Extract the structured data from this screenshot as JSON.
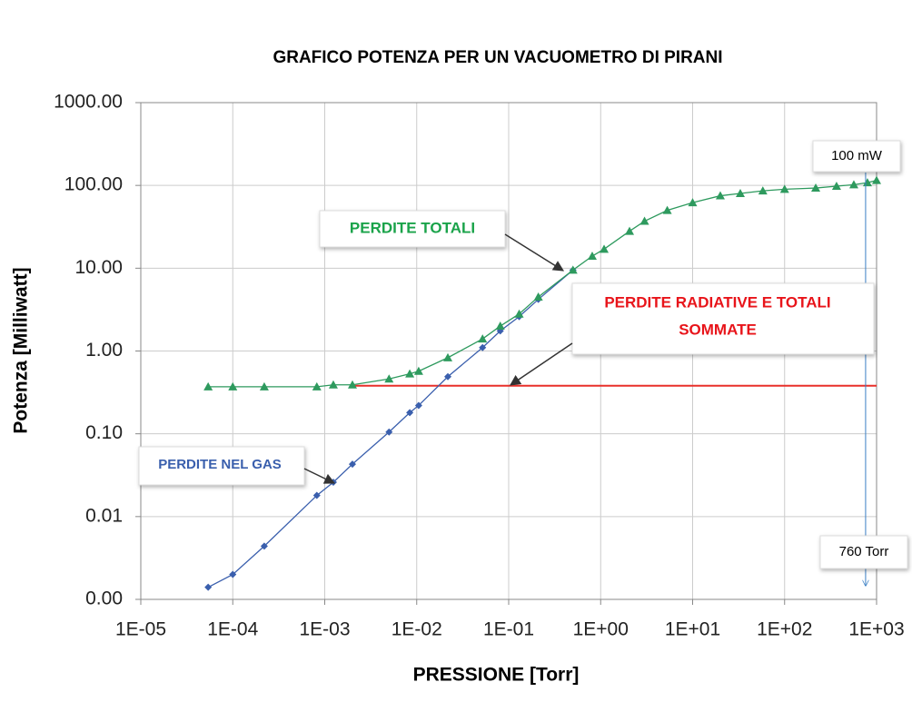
{
  "chart_data": {
    "type": "line",
    "title": "GRAFICO POTENZA PER UN VACUOMETRO DI PIRANI",
    "x_label": "PRESSIONE [Torr]",
    "y_label": "Potenza  [Milliwatt]",
    "log_x": true,
    "log_y": true,
    "grid": true,
    "xlim": [
      1e-05,
      1000
    ],
    "ylim": [
      0.001,
      1000
    ],
    "xticks": [
      {
        "value": 1e-05,
        "label": "1E-05"
      },
      {
        "value": 0.0001,
        "label": "1E-04"
      },
      {
        "value": 0.001,
        "label": "1E-03"
      },
      {
        "value": 0.01,
        "label": "1E-02"
      },
      {
        "value": 0.1,
        "label": "1E-01"
      },
      {
        "value": 1,
        "label": "1E+00"
      },
      {
        "value": 10,
        "label": "1E+01"
      },
      {
        "value": 100,
        "label": "1E+02"
      },
      {
        "value": 1000,
        "label": "1E+03"
      }
    ],
    "yticks": [
      {
        "value": 0.001,
        "label": "0.00"
      },
      {
        "value": 0.01,
        "label": "0.01"
      },
      {
        "value": 0.1,
        "label": "0.10"
      },
      {
        "value": 1,
        "label": "1.00"
      },
      {
        "value": 10,
        "label": "10.00"
      },
      {
        "value": 100,
        "label": "100.00"
      },
      {
        "value": 1000,
        "label": "1000.00"
      }
    ],
    "series": [
      {
        "color": "#e8302a",
        "marker": "none",
        "x": [
          0.002,
          1000
        ],
        "values": [
          0.38,
          0.38
        ]
      },
      {
        "color": "#3a5fad",
        "marker": "diamond",
        "x": [
          5.4e-05,
          0.0001,
          0.00022,
          0.00082,
          0.00124,
          0.002,
          0.005,
          0.0084,
          0.0105,
          0.0218,
          0.052,
          0.081,
          0.13,
          0.21,
          0.5
        ],
        "values": [
          0.0014,
          0.002,
          0.0044,
          0.018,
          0.026,
          0.043,
          0.105,
          0.18,
          0.22,
          0.49,
          1.1,
          1.75,
          2.6,
          4.2,
          9.5
        ]
      },
      {
        "color": "#2e9a5e",
        "marker": "triangle",
        "x": [
          5.4e-05,
          0.0001,
          0.00022,
          0.00082,
          0.00124,
          0.002,
          0.005,
          0.0084,
          0.0105,
          0.0218,
          0.052,
          0.081,
          0.13,
          0.21,
          0.5,
          0.81,
          1.09,
          2.06,
          3.0,
          5.3,
          10,
          20,
          33,
          58,
          100,
          218,
          367,
          566,
          796,
          1000
        ],
        "values": [
          0.37,
          0.37,
          0.37,
          0.37,
          0.39,
          0.39,
          0.46,
          0.53,
          0.57,
          0.83,
          1.4,
          2.0,
          2.8,
          4.5,
          9.5,
          14,
          17,
          28,
          37,
          50,
          62,
          75,
          80,
          86,
          90,
          93,
          98,
          102,
          108,
          115
        ]
      }
    ],
    "annotations": [
      {
        "text": "PERDITE TOTALI",
        "color": "#1aa34a"
      },
      {
        "text": "PERDITE RADIATIVE E TOTALI",
        "color": "#e8141a"
      },
      {
        "text": "SOMMATE",
        "color": "#e8141a"
      },
      {
        "text": "PERDITE NEL GAS",
        "color": "#3a5fad"
      },
      {
        "text": "100 mW",
        "color": "#000000"
      },
      {
        "text": "760 Torr",
        "color": "#000000"
      }
    ],
    "marker_x": 760
  }
}
